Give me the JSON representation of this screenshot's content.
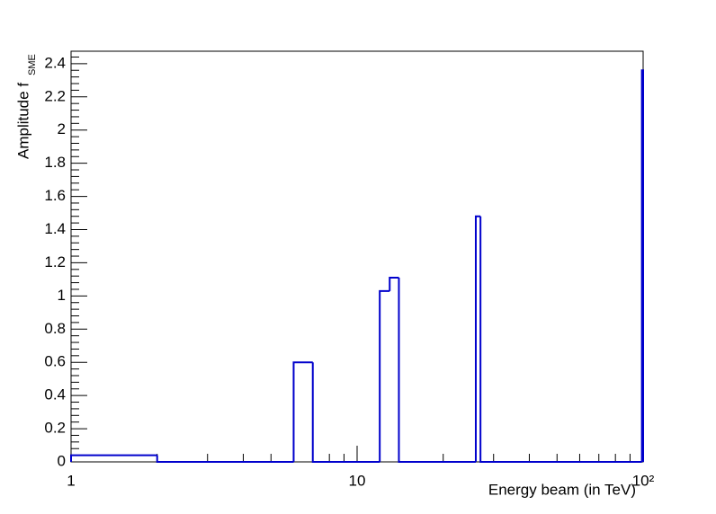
{
  "chart_data": {
    "type": "histogram",
    "xlabel": "Energy beam (in TeV)",
    "ylabel": "Amplitude f",
    "ylabel_subscript": "SME",
    "bins": [
      1,
      2,
      6,
      7,
      12,
      13,
      14,
      26,
      27,
      99,
      100
    ],
    "counts": [
      0.04,
      0,
      0.6,
      0,
      1.03,
      1.11,
      0,
      1.48,
      0,
      2.36
    ],
    "color": "#0000cc",
    "xlog": true,
    "xlim": [
      1,
      100
    ],
    "xticks": [
      1,
      10,
      {
        "value": 100,
        "label": "10²"
      }
    ],
    "xminorticks": [
      2,
      3,
      4,
      5,
      6,
      7,
      8,
      9,
      20,
      30,
      40,
      50,
      60,
      70,
      80,
      90
    ],
    "ylim": [
      0,
      2.475
    ],
    "yticks": [
      0,
      0.2,
      0.4,
      0.6,
      0.8,
      1,
      1.2,
      1.4,
      1.6,
      1.8,
      2,
      2.2,
      2.4
    ],
    "yminorticks": [
      0.04,
      0.08,
      0.12,
      0.16,
      0.24,
      0.28,
      0.32,
      0.36,
      0.44,
      0.48,
      0.52,
      0.56,
      0.64,
      0.68,
      0.72,
      0.76,
      0.84,
      0.88,
      0.92,
      0.96,
      1.04,
      1.08,
      1.12,
      1.16,
      1.24,
      1.28,
      1.32,
      1.36,
      1.44,
      1.48,
      1.52,
      1.56,
      1.64,
      1.68,
      1.72,
      1.76,
      1.84,
      1.88,
      1.92,
      1.96,
      2.04,
      2.08,
      2.12,
      2.16,
      2.24,
      2.28,
      2.32,
      2.36,
      2.44
    ]
  }
}
